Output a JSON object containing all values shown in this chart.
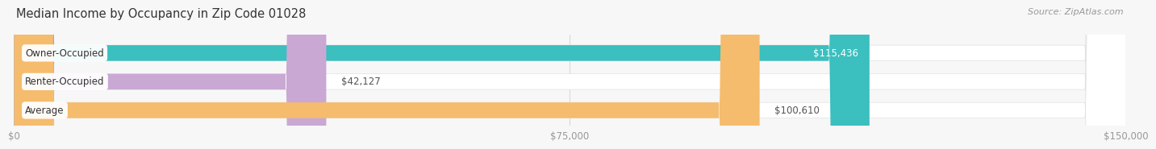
{
  "title": "Median Income by Occupancy in Zip Code 01028",
  "source": "Source: ZipAtlas.com",
  "categories": [
    "Owner-Occupied",
    "Renter-Occupied",
    "Average"
  ],
  "values": [
    115436,
    42127,
    100610
  ],
  "labels": [
    "$115,436",
    "$42,127",
    "$100,610"
  ],
  "bar_colors": [
    "#3bbfbf",
    "#c9a8d4",
    "#f5bc6e"
  ],
  "xlim": [
    0,
    150000
  ],
  "xticks": [
    0,
    75000,
    150000
  ],
  "xtick_labels": [
    "$0",
    "$75,000",
    "$150,000"
  ],
  "background_color": "#f7f7f7",
  "bar_bg_color": "#ffffff",
  "title_fontsize": 10.5,
  "label_fontsize": 8.5,
  "tick_fontsize": 8.5,
  "source_fontsize": 8.0,
  "value_label_threshold": 0.75
}
